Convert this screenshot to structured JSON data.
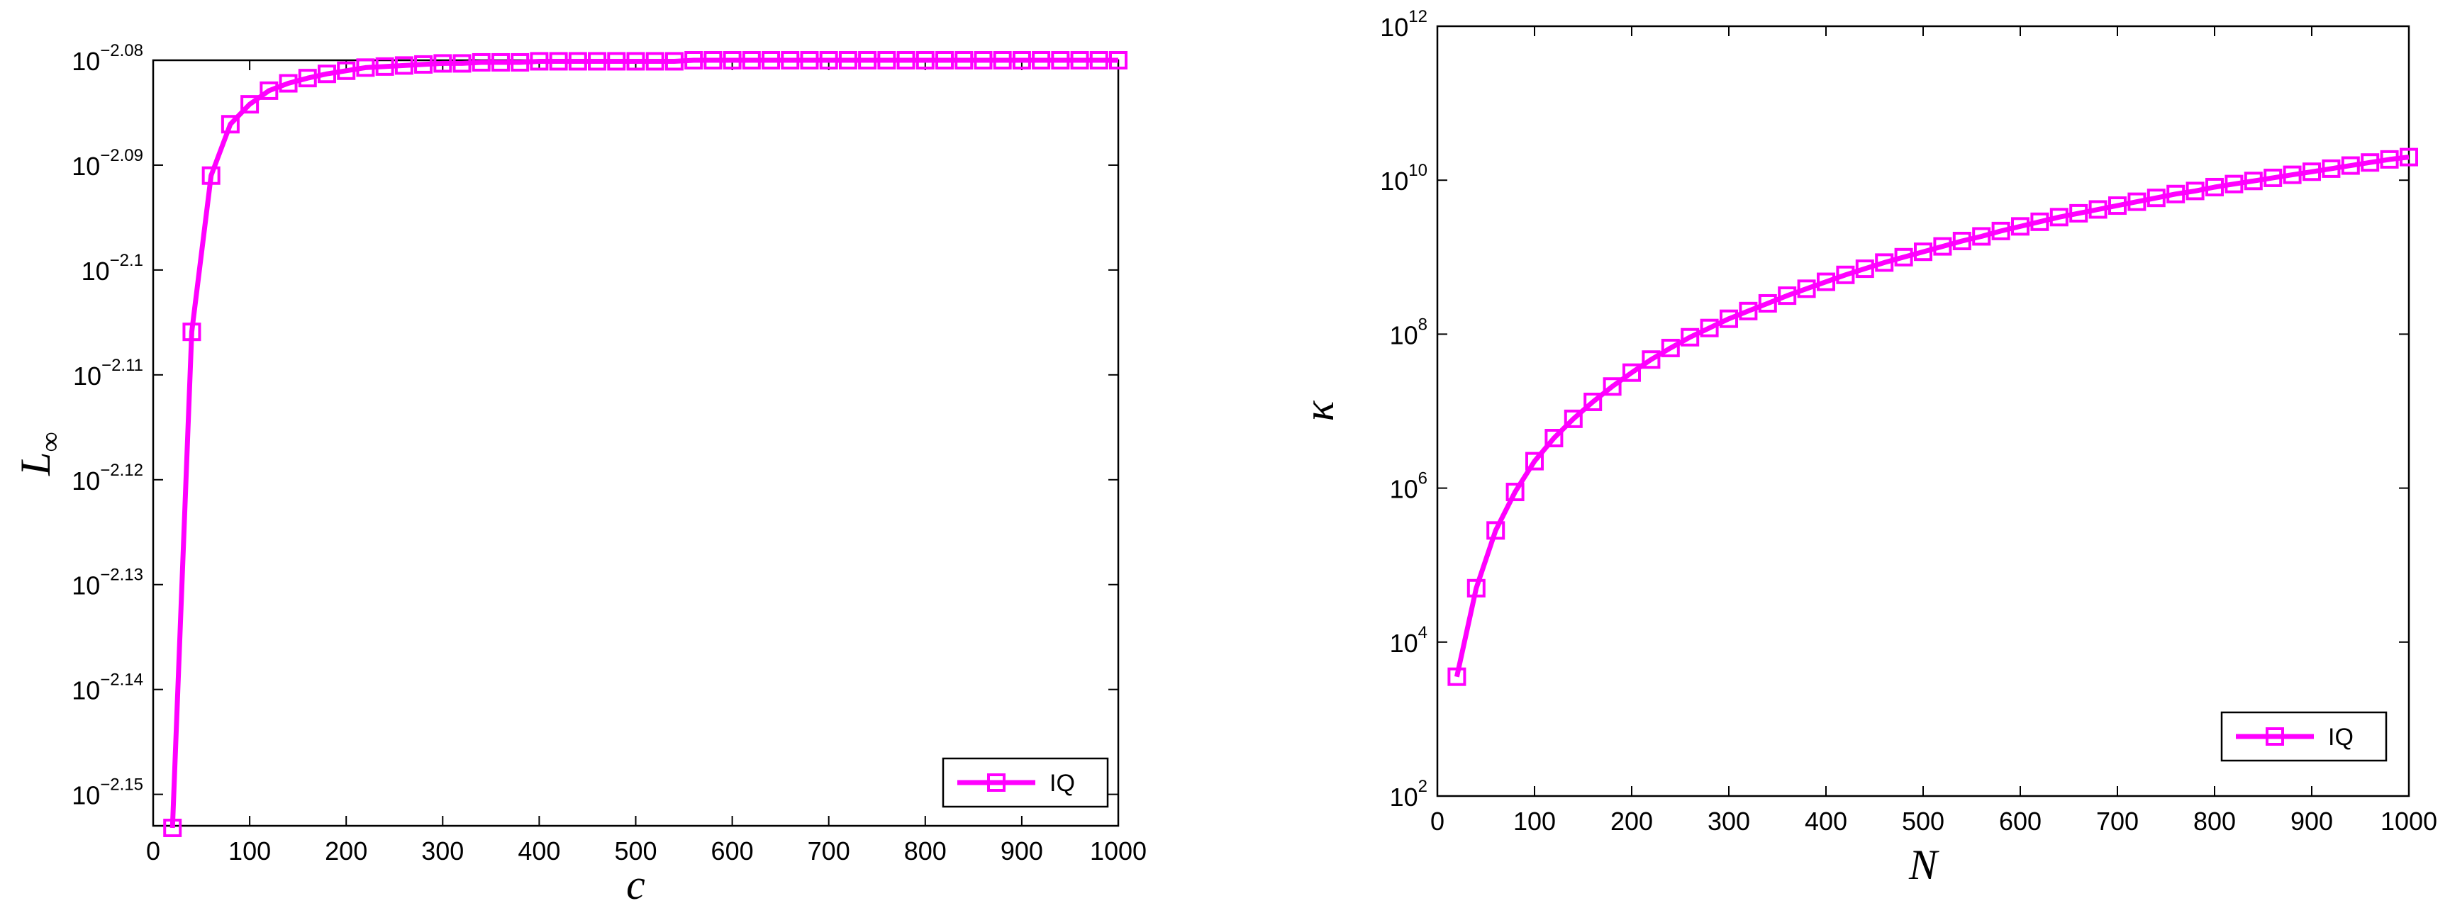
{
  "colors": {
    "series": "#ff00ff",
    "axes": "#000000",
    "background": "#ffffff"
  },
  "chart_data": [
    {
      "type": "line",
      "yscale": "log",
      "xlabel": "c",
      "ylabel": "L",
      "ylabel_subscript": "∞",
      "xlim": [
        0,
        1000
      ],
      "ylim": [
        -2.153,
        -2.08
      ],
      "x_ticks": [
        "0",
        "100",
        "200",
        "300",
        "400",
        "500",
        "600",
        "700",
        "800",
        "900",
        "1000"
      ],
      "y_ticks": [
        {
          "base": "10",
          "exp": "−2.15",
          "v": -2.15
        },
        {
          "base": "10",
          "exp": "−2.14",
          "v": -2.14
        },
        {
          "base": "10",
          "exp": "−2.13",
          "v": -2.13
        },
        {
          "base": "10",
          "exp": "−2.12",
          "v": -2.12
        },
        {
          "base": "10",
          "exp": "−2.11",
          "v": -2.11
        },
        {
          "base": "10",
          "exp": "−2.1",
          "v": -2.1
        },
        {
          "base": "10",
          "exp": "−2.09",
          "v": -2.09
        },
        {
          "base": "10",
          "exp": "−2.08",
          "v": -2.08
        }
      ],
      "grid": false,
      "legend_position": "bottom-right",
      "series": [
        {
          "name": "IQ",
          "marker": "square",
          "color": "#ff00ff",
          "x": [
            20,
            40,
            60,
            80,
            100,
            120,
            140,
            160,
            180,
            200,
            220,
            240,
            260,
            280,
            300,
            320,
            340,
            360,
            380,
            400,
            420,
            440,
            460,
            480,
            500,
            520,
            540,
            560,
            580,
            600,
            620,
            640,
            660,
            680,
            700,
            720,
            740,
            760,
            780,
            800,
            820,
            840,
            860,
            880,
            900,
            920,
            940,
            960,
            980,
            1000
          ],
          "log10_y": [
            -2.1532,
            -2.1059,
            -2.091,
            -2.0861,
            -2.0842,
            -2.0829,
            -2.0822,
            -2.0817,
            -2.0813,
            -2.081,
            -2.0807,
            -2.0806,
            -2.0805,
            -2.0804,
            -2.0803,
            -2.0803,
            -2.0802,
            -2.0802,
            -2.0802,
            -2.0801,
            -2.0801,
            -2.0801,
            -2.0801,
            -2.0801,
            -2.0801,
            -2.0801,
            -2.0801,
            -2.08,
            -2.08,
            -2.08,
            -2.08,
            -2.08,
            -2.08,
            -2.08,
            -2.08,
            -2.08,
            -2.08,
            -2.08,
            -2.08,
            -2.08,
            -2.08,
            -2.08,
            -2.08,
            -2.08,
            -2.08,
            -2.08,
            -2.08,
            -2.08,
            -2.08,
            -2.08
          ]
        }
      ]
    },
    {
      "type": "line",
      "yscale": "log",
      "xlabel": "N",
      "ylabel": "κ",
      "xlim": [
        0,
        1000
      ],
      "ylim": [
        2,
        12
      ],
      "x_ticks": [
        "0",
        "100",
        "200",
        "300",
        "400",
        "500",
        "600",
        "700",
        "800",
        "900",
        "1000"
      ],
      "y_ticks": [
        {
          "base": "10",
          "exp": "2",
          "v": 2
        },
        {
          "base": "10",
          "exp": "4",
          "v": 4
        },
        {
          "base": "10",
          "exp": "6",
          "v": 6
        },
        {
          "base": "10",
          "exp": "8",
          "v": 8
        },
        {
          "base": "10",
          "exp": "10",
          "v": 10
        },
        {
          "base": "10",
          "exp": "12",
          "v": 12
        }
      ],
      "grid": false,
      "legend_position": "bottom-right",
      "series": [
        {
          "name": "IQ",
          "marker": "square",
          "color": "#ff00ff",
          "x": [
            20,
            40,
            60,
            80,
            100,
            120,
            140,
            160,
            180,
            200,
            220,
            240,
            260,
            280,
            300,
            320,
            340,
            360,
            380,
            400,
            420,
            440,
            460,
            480,
            500,
            520,
            540,
            560,
            580,
            600,
            620,
            640,
            660,
            680,
            700,
            720,
            740,
            760,
            780,
            800,
            820,
            840,
            860,
            880,
            900,
            920,
            940,
            960,
            980,
            1000
          ],
          "log10_y": [
            3.55,
            4.7,
            5.45,
            5.95,
            6.35,
            6.65,
            6.9,
            7.12,
            7.32,
            7.5,
            7.67,
            7.82,
            7.96,
            8.08,
            8.2,
            8.3,
            8.4,
            8.5,
            8.59,
            8.68,
            8.77,
            8.85,
            8.93,
            9.0,
            9.07,
            9.14,
            9.21,
            9.27,
            9.34,
            9.4,
            9.46,
            9.52,
            9.57,
            9.62,
            9.67,
            9.72,
            9.77,
            9.82,
            9.86,
            9.91,
            9.95,
            9.99,
            10.03,
            10.07,
            10.11,
            10.15,
            10.19,
            10.23,
            10.27,
            10.3
          ]
        }
      ]
    }
  ]
}
